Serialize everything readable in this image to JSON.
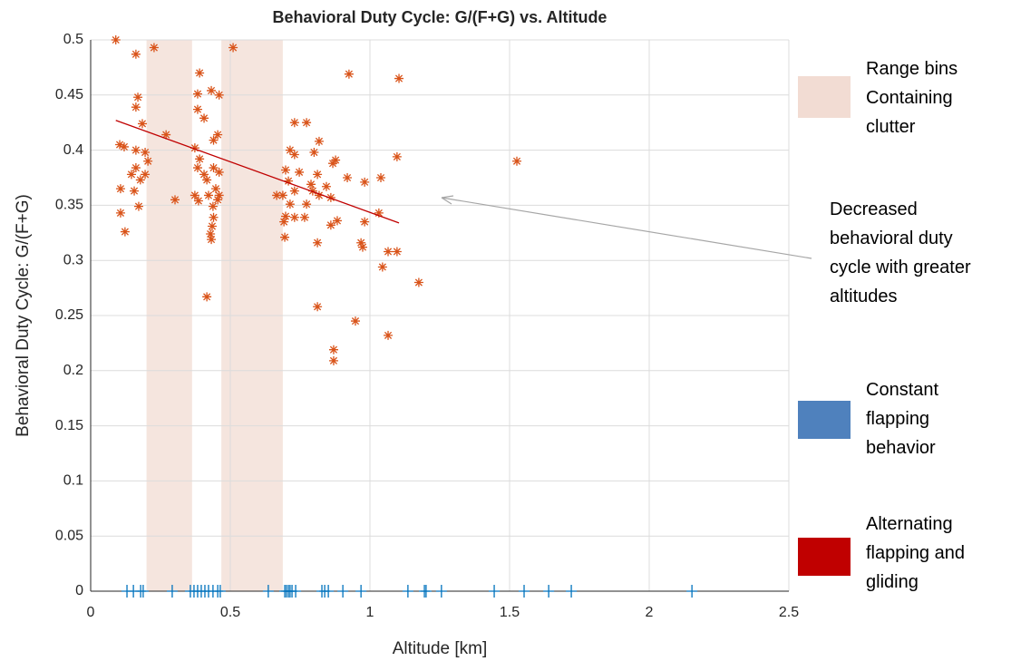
{
  "chart_data": {
    "type": "scatter",
    "title": "Behavioral Duty Cycle: G/(F+G) vs. Altitude",
    "xlabel": "Altitude [km]",
    "ylabel": "Behavioral Duty Cycle: G/(F+G)",
    "xlim": [
      0,
      2.5
    ],
    "xticks": [
      0,
      0.5,
      1,
      1.5,
      2,
      2.5
    ],
    "ylim": [
      0,
      0.5
    ],
    "yticks": [
      0,
      0.05,
      0.1,
      0.15,
      0.2,
      0.25,
      0.3,
      0.35,
      0.4,
      0.45,
      0.5
    ],
    "grid": true,
    "clutter": {
      "name": "Range bins Containing clutter",
      "color": "#f2dcd3",
      "ranges": [
        [
          0.2,
          0.363
        ],
        [
          0.468,
          0.688
        ]
      ]
    },
    "series": [
      {
        "name": "Alternating flapping and gliding",
        "color": "#d95319",
        "legend_color": "#c00000",
        "marker": "asterisk",
        "x": [
          0.09,
          0.227,
          0.162,
          0.51,
          0.39,
          0.925,
          1.104,
          0.169,
          0.162,
          0.383,
          0.432,
          0.46,
          0.383,
          0.406,
          0.185,
          0.73,
          0.773,
          0.27,
          0.455,
          0.44,
          0.818,
          0.104,
          0.12,
          0.373,
          0.162,
          0.714,
          0.195,
          0.73,
          0.8,
          0.877,
          1.097,
          1.526,
          0.205,
          0.39,
          0.867,
          0.162,
          0.383,
          0.44,
          0.146,
          0.195,
          0.406,
          0.46,
          0.698,
          0.747,
          0.812,
          0.178,
          0.416,
          0.919,
          1.039,
          0.708,
          0.789,
          0.981,
          0.107,
          0.156,
          0.448,
          0.73,
          0.795,
          0.844,
          0.373,
          0.422,
          0.46,
          0.666,
          0.688,
          0.818,
          0.302,
          0.386,
          0.455,
          0.86,
          0.172,
          0.438,
          0.714,
          0.773,
          0.107,
          1.032,
          0.698,
          0.73,
          0.766,
          0.44,
          0.883,
          0.981,
          0.692,
          0.86,
          0.435,
          0.123,
          0.429,
          0.695,
          0.432,
          0.812,
          0.968,
          0.974,
          1.065,
          1.097,
          1.045,
          1.175,
          0.416,
          0.812,
          0.948,
          1.065,
          0.87,
          0.87
        ],
        "values": [
          0.5,
          0.493,
          0.487,
          0.493,
          0.47,
          0.469,
          0.465,
          0.448,
          0.439,
          0.451,
          0.454,
          0.45,
          0.437,
          0.429,
          0.424,
          0.425,
          0.425,
          0.414,
          0.414,
          0.409,
          0.408,
          0.405,
          0.403,
          0.402,
          0.4,
          0.4,
          0.398,
          0.396,
          0.398,
          0.391,
          0.394,
          0.39,
          0.39,
          0.392,
          0.388,
          0.384,
          0.384,
          0.384,
          0.378,
          0.378,
          0.378,
          0.38,
          0.382,
          0.38,
          0.378,
          0.373,
          0.373,
          0.375,
          0.375,
          0.372,
          0.369,
          0.371,
          0.365,
          0.363,
          0.365,
          0.363,
          0.363,
          0.367,
          0.359,
          0.359,
          0.359,
          0.359,
          0.359,
          0.359,
          0.355,
          0.354,
          0.355,
          0.357,
          0.349,
          0.349,
          0.351,
          0.351,
          0.343,
          0.343,
          0.34,
          0.339,
          0.339,
          0.339,
          0.336,
          0.335,
          0.335,
          0.332,
          0.331,
          0.326,
          0.324,
          0.321,
          0.319,
          0.316,
          0.316,
          0.312,
          0.308,
          0.308,
          0.294,
          0.28,
          0.267,
          0.258,
          0.245,
          0.232,
          0.219,
          0.209
        ]
      },
      {
        "name": "Constant flapping behavior",
        "color": "#0072bd",
        "legend_color": "#4f81bd",
        "marker": "plus",
        "x": [
          0.13,
          0.153,
          0.179,
          0.188,
          0.292,
          0.357,
          0.37,
          0.383,
          0.396,
          0.409,
          0.422,
          0.438,
          0.455,
          0.464,
          0.636,
          0.695,
          0.701,
          0.708,
          0.714,
          0.721,
          0.734,
          0.828,
          0.838,
          0.851,
          0.903,
          0.968,
          1.136,
          1.195,
          1.201,
          1.256,
          1.445,
          1.552,
          1.64,
          1.721,
          2.153
        ],
        "values": [
          0,
          0,
          0,
          0,
          0,
          0,
          0,
          0,
          0,
          0,
          0,
          0,
          0,
          0,
          0,
          0,
          0,
          0,
          0,
          0,
          0,
          0,
          0,
          0,
          0,
          0,
          0,
          0,
          0,
          0,
          0,
          0,
          0,
          0,
          0
        ]
      }
    ],
    "trend": {
      "color": "#c00000",
      "x": [
        0.09,
        1.104
      ],
      "values": [
        0.427,
        0.334
      ]
    },
    "annotation": "Decreased behavioral duty cycle with greater altitudes"
  }
}
